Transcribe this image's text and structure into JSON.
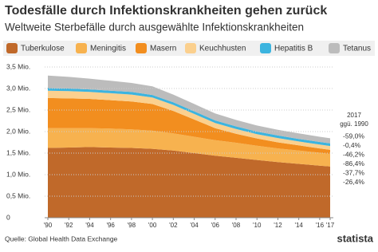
{
  "chart_data": {
    "type": "stacked-area",
    "title": "Todesfälle durch Infektionskrankheiten gehen zurück",
    "subtitle": "Weltweite Sterbefälle durch ausgewählte Infektionskrankheiten",
    "x": [
      1990,
      1992,
      1994,
      1996,
      1998,
      2000,
      2002,
      2004,
      2006,
      2008,
      2010,
      2012,
      2014,
      2016,
      2017
    ],
    "xlim": [
      1990,
      2017
    ],
    "xticks": [
      {
        "value": 1990,
        "label": "'90"
      },
      {
        "value": 1992,
        "label": "'92"
      },
      {
        "value": 1994,
        "label": "'94"
      },
      {
        "value": 1996,
        "label": "'96"
      },
      {
        "value": 1998,
        "label": "'98"
      },
      {
        "value": 2000,
        "label": "'00"
      },
      {
        "value": 2002,
        "label": "'02"
      },
      {
        "value": 2004,
        "label": "'04"
      },
      {
        "value": 2006,
        "label": "'06"
      },
      {
        "value": 2008,
        "label": "'08"
      },
      {
        "value": 2010,
        "label": "'10"
      },
      {
        "value": 2012,
        "label": "'12"
      },
      {
        "value": 2014,
        "label": "'14"
      },
      {
        "value": 2016,
        "label": "'16"
      },
      {
        "value": 2017,
        "label": "'17"
      }
    ],
    "ylim": [
      0,
      3.5
    ],
    "yticks": [
      0,
      {
        "value": 0.5,
        "label": "0,5 Mio."
      },
      {
        "value": 1,
        "label": "1,0 Mio."
      },
      {
        "value": 1.5,
        "label": "1,5 Mio."
      },
      {
        "value": 2,
        "label": "2,0 Mio."
      },
      {
        "value": 2.5,
        "label": "2,5 Mio."
      },
      {
        "value": 3,
        "label": "3,0 Mio."
      },
      {
        "value": 3.5,
        "label": "3,5 Mio."
      }
    ],
    "grid": true,
    "series": [
      {
        "name": "Tuberkulose",
        "color": "#c0692a",
        "change": "-26,4%",
        "values": [
          1.62,
          1.63,
          1.64,
          1.63,
          1.62,
          1.6,
          1.56,
          1.5,
          1.44,
          1.39,
          1.34,
          1.29,
          1.25,
          1.21,
          1.19
        ]
      },
      {
        "name": "Meningitis",
        "color": "#f7b24f",
        "change": "-37,7%",
        "values": [
          0.46,
          0.45,
          0.44,
          0.44,
          0.43,
          0.42,
          0.4,
          0.38,
          0.36,
          0.35,
          0.33,
          0.32,
          0.31,
          0.3,
          0.29
        ]
      },
      {
        "name": "Masern",
        "color": "#f28e1f",
        "change": "-86,4%",
        "values": [
          0.7,
          0.69,
          0.68,
          0.66,
          0.65,
          0.62,
          0.52,
          0.4,
          0.28,
          0.21,
          0.17,
          0.14,
          0.12,
          0.1,
          0.095
        ]
      },
      {
        "name": "Keuchhusten",
        "color": "#fbd08e",
        "change": "-46,2%",
        "values": [
          0.17,
          0.17,
          0.16,
          0.16,
          0.16,
          0.15,
          0.14,
          0.13,
          0.12,
          0.11,
          0.1,
          0.1,
          0.09,
          0.09,
          0.09
        ]
      },
      {
        "name": "Hepatitis B",
        "color": "#3cb4df",
        "change": "-0,4%",
        "values": [
          0.06,
          0.06,
          0.06,
          0.06,
          0.06,
          0.06,
          0.06,
          0.06,
          0.06,
          0.06,
          0.06,
          0.06,
          0.06,
          0.06,
          0.06
        ]
      },
      {
        "name": "Tetanus",
        "color": "#bcbcbc",
        "change": "-59,0%",
        "values": [
          0.29,
          0.27,
          0.25,
          0.23,
          0.21,
          0.2,
          0.18,
          0.17,
          0.16,
          0.15,
          0.14,
          0.13,
          0.13,
          0.12,
          0.12
        ]
      }
    ],
    "change_title": "2017",
    "change_subtitle": "ggü. 1990",
    "source": "Quelle: Global Health Data Exchange",
    "brand": "statista"
  }
}
